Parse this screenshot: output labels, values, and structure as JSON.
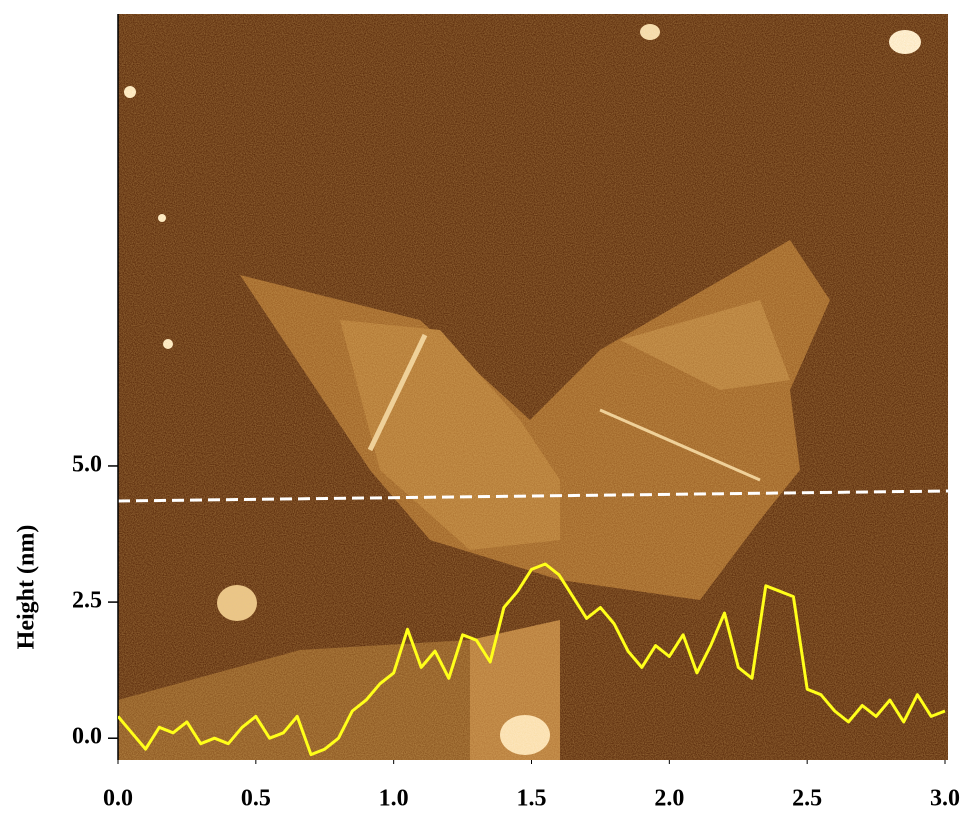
{
  "chart_data": {
    "type": "line",
    "y_label": "Height (nm)",
    "x": [
      0.0,
      0.05,
      0.1,
      0.15,
      0.2,
      0.25,
      0.3,
      0.35,
      0.4,
      0.45,
      0.5,
      0.55,
      0.6,
      0.65,
      0.7,
      0.75,
      0.8,
      0.85,
      0.9,
      0.95,
      1.0,
      1.05,
      1.1,
      1.15,
      1.2,
      1.25,
      1.3,
      1.35,
      1.4,
      1.45,
      1.5,
      1.55,
      1.6,
      1.65,
      1.7,
      1.75,
      1.8,
      1.85,
      1.9,
      1.95,
      2.0,
      2.05,
      2.1,
      2.15,
      2.2,
      2.25,
      2.3,
      2.35,
      2.4,
      2.45,
      2.5,
      2.55,
      2.6,
      2.65,
      2.7,
      2.75,
      2.8,
      2.85,
      2.9,
      2.95,
      3.0
    ],
    "series": [
      {
        "color": "#ffff1a",
        "values": [
          0.4,
          0.1,
          -0.2,
          0.2,
          0.1,
          0.3,
          -0.1,
          0.0,
          -0.1,
          0.2,
          0.4,
          0.0,
          0.1,
          0.4,
          -0.3,
          -0.2,
          0.0,
          0.5,
          0.7,
          1.0,
          1.2,
          2.0,
          1.3,
          1.6,
          1.1,
          1.9,
          1.8,
          1.4,
          2.4,
          2.7,
          3.1,
          3.2,
          3.0,
          2.6,
          2.2,
          2.4,
          2.1,
          1.6,
          1.3,
          1.7,
          1.5,
          1.9,
          1.2,
          1.7,
          2.3,
          1.3,
          1.1,
          2.8,
          2.7,
          2.6,
          0.9,
          0.8,
          0.5,
          0.3,
          0.6,
          0.4,
          0.7,
          0.3,
          0.8,
          0.4,
          0.5
        ]
      }
    ],
    "xlim": [
      0,
      3.0
    ],
    "ylim": [
      -0.4,
      13.3
    ],
    "xticks": [
      {
        "value": 0,
        "label": "0.0"
      },
      0.5,
      {
        "value": 1,
        "label": "1.0"
      },
      1.5,
      {
        "value": 2,
        "label": "2.0"
      },
      2.5,
      {
        "value": 3,
        "label": "3.0"
      }
    ],
    "yticks": [
      {
        "value": 0,
        "label": "0.0"
      },
      2.5,
      {
        "value": 5,
        "label": "5.0"
      }
    ]
  }
}
